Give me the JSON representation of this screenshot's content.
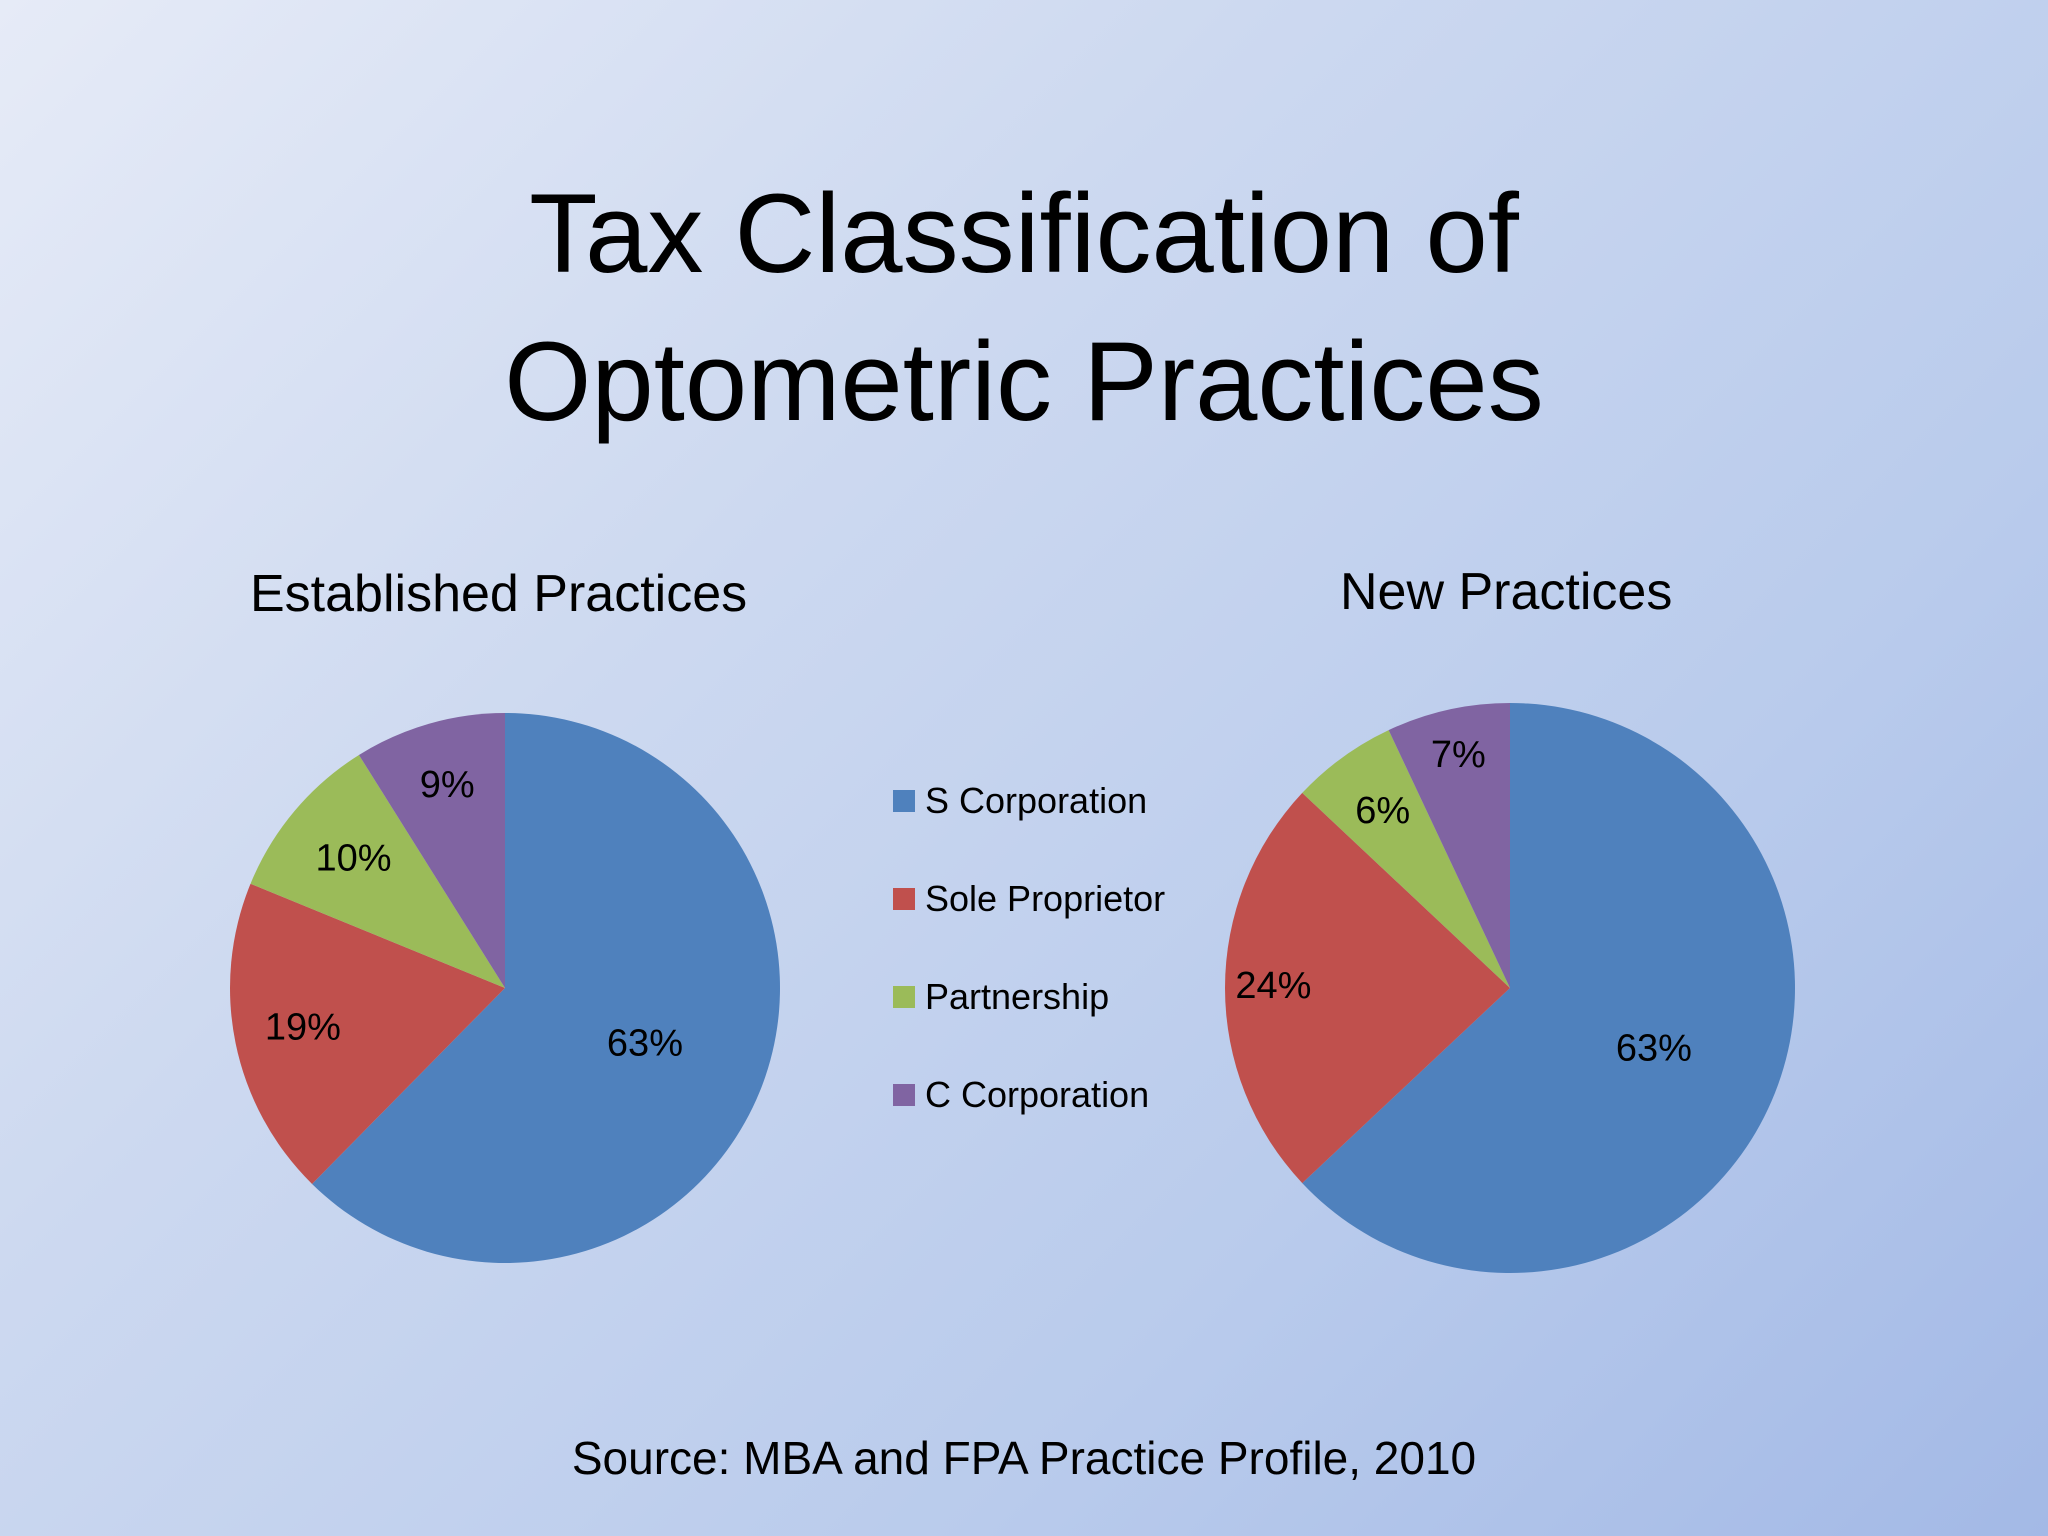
{
  "slide": {
    "title_line1": "Tax Classification of",
    "title_line2": "Optometric Practices",
    "source": "Source: MBA and FPA Practice Profile, 2010"
  },
  "legend": {
    "items": [
      {
        "label": "S Corporation",
        "color": "#4f81bd"
      },
      {
        "label": "Sole Proprietor",
        "color": "#c0504d"
      },
      {
        "label": "Partnership",
        "color": "#9bbb59"
      },
      {
        "label": "C Corporation",
        "color": "#8064a2"
      }
    ]
  },
  "chart_data": [
    {
      "type": "pie",
      "title": "Established Practices",
      "categories": [
        "S Corporation",
        "Sole Proprietor",
        "Partnership",
        "C Corporation"
      ],
      "values": [
        63,
        19,
        10,
        9
      ],
      "labels": [
        "63%",
        "19%",
        "10%",
        "9%"
      ],
      "colors": [
        "#4f81bd",
        "#c0504d",
        "#9bbb59",
        "#8064a2"
      ],
      "start_angle": "12 o'clock",
      "direction": "clockwise",
      "legend_position": "between charts (shared)"
    },
    {
      "type": "pie",
      "title": "New Practices",
      "categories": [
        "S Corporation",
        "Sole Proprietor",
        "Partnership",
        "C Corporation"
      ],
      "values": [
        63,
        24,
        6,
        7
      ],
      "labels": [
        "63%",
        "24%",
        "6%",
        "7%"
      ],
      "colors": [
        "#4f81bd",
        "#c0504d",
        "#9bbb59",
        "#8064a2"
      ],
      "start_angle": "12 o'clock",
      "direction": "clockwise",
      "legend_position": "between charts (shared)"
    }
  ]
}
